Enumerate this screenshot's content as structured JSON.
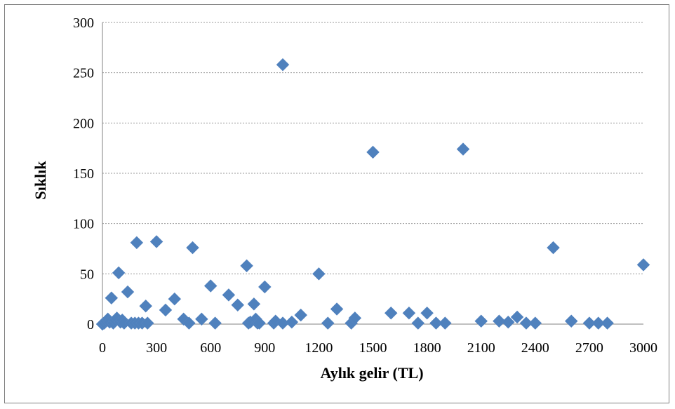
{
  "chart_data": {
    "type": "scatter",
    "title": "",
    "xlabel": "Aylık gelir (TL)",
    "ylabel": "Sıklık",
    "xlim": [
      0,
      3000
    ],
    "ylim": [
      0,
      300
    ],
    "x_ticks": [
      0,
      300,
      600,
      900,
      1200,
      1500,
      1800,
      2100,
      2400,
      2700,
      3000
    ],
    "y_ticks": [
      0,
      50,
      100,
      150,
      200,
      250,
      300
    ],
    "grid": "horizontal dashed",
    "marker": "diamond",
    "marker_color": "#4f81bd",
    "points": [
      [
        0,
        0
      ],
      [
        10,
        1
      ],
      [
        20,
        3
      ],
      [
        30,
        5
      ],
      [
        40,
        2
      ],
      [
        50,
        26
      ],
      [
        60,
        1
      ],
      [
        70,
        4
      ],
      [
        80,
        6
      ],
      [
        90,
        51
      ],
      [
        100,
        2
      ],
      [
        110,
        4
      ],
      [
        120,
        1
      ],
      [
        140,
        32
      ],
      [
        160,
        1
      ],
      [
        180,
        1
      ],
      [
        190,
        81
      ],
      [
        200,
        1
      ],
      [
        220,
        1
      ],
      [
        240,
        18
      ],
      [
        250,
        1
      ],
      [
        300,
        82
      ],
      [
        350,
        14
      ],
      [
        400,
        25
      ],
      [
        450,
        5
      ],
      [
        480,
        1
      ],
      [
        500,
        76
      ],
      [
        550,
        5
      ],
      [
        600,
        38
      ],
      [
        625,
        1
      ],
      [
        700,
        29
      ],
      [
        750,
        19
      ],
      [
        800,
        58
      ],
      [
        810,
        1
      ],
      [
        820,
        2
      ],
      [
        840,
        20
      ],
      [
        850,
        5
      ],
      [
        860,
        1
      ],
      [
        870,
        1
      ],
      [
        900,
        37
      ],
      [
        950,
        1
      ],
      [
        960,
        3
      ],
      [
        1000,
        258
      ],
      [
        1000,
        1
      ],
      [
        1050,
        2
      ],
      [
        1100,
        9
      ],
      [
        1200,
        50
      ],
      [
        1250,
        1
      ],
      [
        1300,
        15
      ],
      [
        1380,
        1
      ],
      [
        1400,
        6
      ],
      [
        1500,
        171
      ],
      [
        1600,
        11
      ],
      [
        1700,
        11
      ],
      [
        1750,
        1
      ],
      [
        1800,
        11
      ],
      [
        1850,
        1
      ],
      [
        1900,
        1
      ],
      [
        2000,
        174
      ],
      [
        2100,
        3
      ],
      [
        2200,
        3
      ],
      [
        2250,
        2
      ],
      [
        2300,
        7
      ],
      [
        2350,
        1
      ],
      [
        2400,
        1
      ],
      [
        2500,
        76
      ],
      [
        2600,
        3
      ],
      [
        2700,
        1
      ],
      [
        2750,
        1
      ],
      [
        2800,
        1
      ],
      [
        3000,
        59
      ]
    ]
  }
}
